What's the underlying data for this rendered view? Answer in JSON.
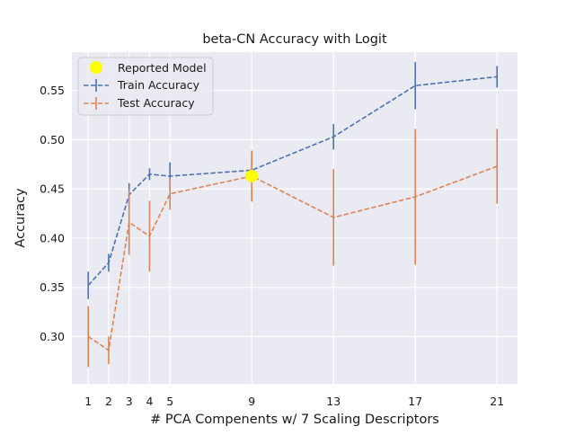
{
  "chart_data": {
    "type": "line",
    "title": "beta-CN Accuracy with Logit",
    "xlabel": "# PCA Compenents w/ 7 Scaling Descriptors",
    "ylabel": "Accuracy",
    "x": [
      1,
      2,
      3,
      4,
      5,
      9,
      13,
      17,
      21
    ],
    "xticks": [
      "1",
      "2",
      "3",
      "4",
      "5",
      "9",
      "13",
      "17",
      "21"
    ],
    "yticks": [
      0.3,
      0.35,
      0.4,
      0.45,
      0.5,
      0.55
    ],
    "ytick_labels": [
      "0.30",
      "0.35",
      "0.40",
      "0.45",
      "0.50",
      "0.55"
    ],
    "xlim": [
      0.2,
      22.0
    ],
    "ylim": [
      0.252,
      0.589
    ],
    "grid": true,
    "legend_position": "top-left",
    "series": [
      {
        "name": "Train Accuracy",
        "color": "#4c72b0",
        "values": [
          0.352,
          0.375,
          0.444,
          0.465,
          0.463,
          0.469,
          0.503,
          0.555,
          0.564
        ],
        "err": [
          0.014,
          0.009,
          0.012,
          0.006,
          0.014,
          0.007,
          0.013,
          0.024,
          0.011
        ]
      },
      {
        "name": "Test Accuracy",
        "color": "#dd8452",
        "values": [
          0.3,
          0.286,
          0.416,
          0.402,
          0.445,
          0.463,
          0.421,
          0.442,
          0.473
        ],
        "err": [
          0.031,
          0.014,
          0.033,
          0.036,
          0.016,
          0.026,
          0.049,
          0.069,
          0.038
        ]
      }
    ],
    "reported_model": {
      "name": "Reported Model",
      "x": 9,
      "y": 0.463,
      "color": "#ffff00"
    }
  }
}
